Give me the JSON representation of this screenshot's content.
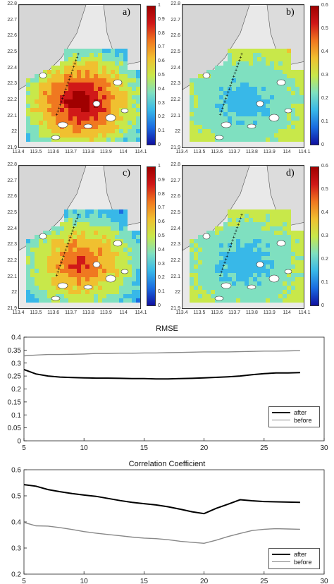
{
  "colormap": [
    "#1010a0",
    "#1a6be0",
    "#38b8e8",
    "#7fe0c0",
    "#c8e84a",
    "#f0c030",
    "#f07820",
    "#d01818",
    "#a00000"
  ],
  "maps": [
    {
      "label": "a)",
      "cbar_ticks": [
        "1",
        "0.9",
        "0.8",
        "0.7",
        "0.6",
        "0.5",
        "0.4",
        "0.3",
        "0.2",
        "0.1",
        "0"
      ],
      "level": 0.85
    },
    {
      "label": "b)",
      "cbar_ticks": [
        "0.6",
        "0.5",
        "0.4",
        "0.3",
        "0.2",
        "0.1",
        "0"
      ],
      "level": 0.3
    },
    {
      "label": "c)",
      "cbar_ticks": [
        "1",
        "0.9",
        "0.8",
        "0.7",
        "0.6",
        "0.5",
        "0.4",
        "0.3",
        "0.2",
        "0.1",
        "0"
      ],
      "level": 0.7
    },
    {
      "label": "d)",
      "cbar_ticks": [
        "0.6",
        "0.5",
        "0.4",
        "0.3",
        "0.2",
        "0.1",
        "0"
      ],
      "level": 0.35
    }
  ],
  "map_lat_ticks": [
    "22.8",
    "22.7",
    "22.6",
    "22.5",
    "22.4",
    "22.3",
    "22.2",
    "22.1",
    "22",
    "21.9"
  ],
  "map_lon_ticks": [
    "113.4",
    "113.5",
    "113.6",
    "113.7",
    "113.8",
    "113.9",
    "114",
    "114.1"
  ],
  "chart_data": [
    {
      "type": "line",
      "title": "RMSE",
      "xlabel": "",
      "ylabel": "",
      "xlim": [
        5,
        30
      ],
      "ylim": [
        0,
        0.4
      ],
      "xticks": [
        "5",
        "10",
        "15",
        "20",
        "25",
        "30"
      ],
      "yticks": [
        "0",
        "0.05",
        "0.1",
        "0.15",
        "0.2",
        "0.25",
        "0.3",
        "0.35",
        "0.4"
      ],
      "x": [
        5,
        6,
        7,
        8,
        9,
        10,
        11,
        12,
        13,
        14,
        15,
        16,
        17,
        18,
        19,
        20,
        21,
        22,
        23,
        24,
        25,
        26,
        27,
        28
      ],
      "series": [
        {
          "name": "after",
          "color": "#000000",
          "values": [
            0.275,
            0.258,
            0.25,
            0.246,
            0.244,
            0.243,
            0.242,
            0.242,
            0.241,
            0.24,
            0.24,
            0.239,
            0.239,
            0.24,
            0.241,
            0.243,
            0.245,
            0.247,
            0.25,
            0.255,
            0.259,
            0.262,
            0.262,
            0.263
          ]
        },
        {
          "name": "before",
          "color": "#888888",
          "values": [
            0.328,
            0.331,
            0.333,
            0.333,
            0.334,
            0.335,
            0.337,
            0.337,
            0.338,
            0.338,
            0.339,
            0.339,
            0.34,
            0.341,
            0.342,
            0.343,
            0.343,
            0.343,
            0.344,
            0.345,
            0.346,
            0.346,
            0.347,
            0.348
          ]
        }
      ],
      "legend": "bottom-right"
    },
    {
      "type": "line",
      "title": "Correlation Coefficient",
      "xlabel": "",
      "ylabel": "",
      "xlim": [
        5,
        30
      ],
      "ylim": [
        0.2,
        0.6
      ],
      "xticks": [
        "5",
        "10",
        "15",
        "20",
        "25",
        "30"
      ],
      "yticks": [
        "0.2",
        "0.3",
        "0.4",
        "0.5",
        "0.6"
      ],
      "x": [
        5,
        6,
        7,
        8,
        9,
        10,
        11,
        12,
        13,
        14,
        15,
        16,
        17,
        18,
        19,
        20,
        21,
        22,
        23,
        24,
        25,
        26,
        27,
        28
      ],
      "series": [
        {
          "name": "after",
          "color": "#000000",
          "values": [
            0.543,
            0.537,
            0.524,
            0.516,
            0.509,
            0.503,
            0.498,
            0.49,
            0.482,
            0.475,
            0.47,
            0.465,
            0.458,
            0.449,
            0.439,
            0.432,
            0.452,
            0.468,
            0.485,
            0.481,
            0.478,
            0.477,
            0.476,
            0.475
          ]
        },
        {
          "name": "before",
          "color": "#888888",
          "values": [
            0.398,
            0.385,
            0.384,
            0.378,
            0.371,
            0.363,
            0.357,
            0.352,
            0.347,
            0.342,
            0.338,
            0.336,
            0.332,
            0.326,
            0.322,
            0.318,
            0.33,
            0.344,
            0.356,
            0.367,
            0.372,
            0.374,
            0.373,
            0.372
          ]
        }
      ],
      "legend": "bottom-right"
    }
  ]
}
